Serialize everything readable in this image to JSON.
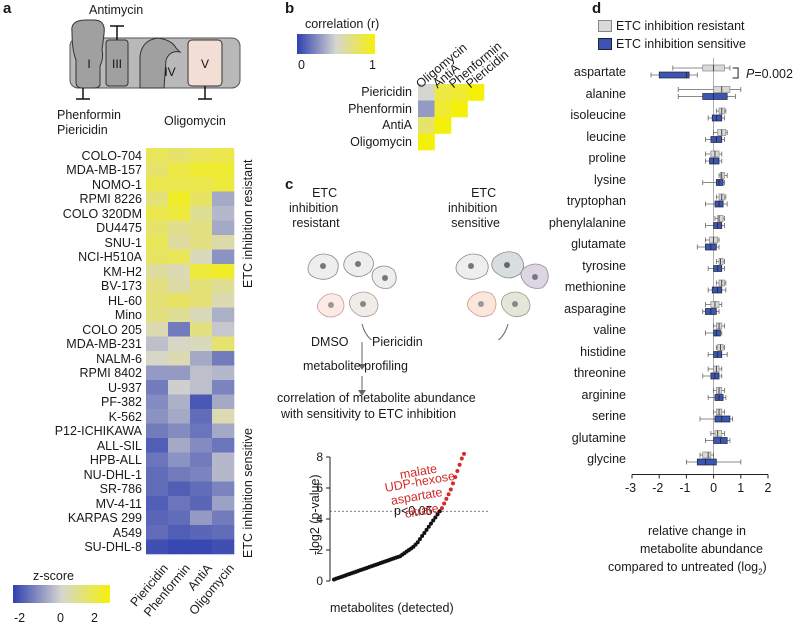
{
  "panels": {
    "a": "a",
    "b": "b",
    "c": "c",
    "d": "d"
  },
  "panel_a": {
    "complexes": [
      "I",
      "III",
      "IV",
      "V"
    ],
    "inhibitors": {
      "top": "Antimycin",
      "left_1": "Phenformin",
      "left_2": "Piericidin",
      "right": "Oligomycin"
    },
    "rows": [
      "COLO-704",
      "MDA-MB-157",
      "NOMO-1",
      "RPMI 8226",
      "COLO 320DM",
      "DU4475",
      "SNU-1",
      "NCI-H510A",
      "KM-H2",
      "BV-173",
      "HL-60",
      "Mino",
      "COLO 205",
      "MDA-MB-231",
      "NALM-6",
      "RPMI 8402",
      "U-937",
      "PF-382",
      "K-562",
      "P12-ICHIKAWA",
      "ALL-SIL",
      "HPB-ALL",
      "NU-DHL-1",
      "SR-786",
      "MV-4-11",
      "KARPAS 299",
      "A549",
      "SU-DHL-8"
    ],
    "columns": [
      "Piericidin",
      "Phenformin",
      "AntiA",
      "Oligomycin"
    ],
    "values": [
      [
        1.2,
        1.0,
        1.2,
        1.3
      ],
      [
        1.0,
        1.4,
        1.6,
        1.6
      ],
      [
        1.3,
        1.3,
        1.3,
        1.5
      ],
      [
        0.9,
        1.7,
        1.1,
        -0.6
      ],
      [
        1.3,
        1.5,
        0.6,
        -0.4
      ],
      [
        1.0,
        0.7,
        0.8,
        -0.6
      ],
      [
        1.2,
        0.5,
        0.8,
        0.4
      ],
      [
        1.1,
        1.2,
        0.2,
        -0.9
      ],
      [
        0.5,
        0.3,
        1.5,
        1.7
      ],
      [
        0.8,
        0.4,
        0.9,
        0.6
      ],
      [
        0.9,
        1.1,
        0.9,
        0.3
      ],
      [
        0.8,
        0.6,
        0.2,
        -0.5
      ],
      [
        0.3,
        -1.2,
        0.8,
        -0.2
      ],
      [
        -0.3,
        0.1,
        0.2,
        1.0
      ],
      [
        0.1,
        0.3,
        -0.6,
        -1.2
      ],
      [
        -0.8,
        -0.8,
        -0.3,
        -0.4
      ],
      [
        -1.2,
        -0.1,
        -0.3,
        -1.1
      ],
      [
        -1.0,
        -0.5,
        -1.7,
        -0.6
      ],
      [
        -0.9,
        -0.6,
        -1.4,
        0.3
      ],
      [
        -1.2,
        -1.0,
        -1.3,
        -0.6
      ],
      [
        -1.6,
        -0.6,
        -1.0,
        -1.3
      ],
      [
        -1.3,
        -0.9,
        -1.2,
        -0.4
      ],
      [
        -1.4,
        -1.2,
        -1.1,
        -0.4
      ],
      [
        -1.4,
        -1.6,
        -1.4,
        -1.1
      ],
      [
        -1.6,
        -1.3,
        -1.5,
        -0.7
      ],
      [
        -1.5,
        -1.4,
        -0.8,
        -1.2
      ],
      [
        -1.4,
        -1.6,
        -1.5,
        -1.4
      ],
      [
        -1.8,
        -1.9,
        -1.9,
        -1.8
      ]
    ],
    "group_resistant": "ETC inhibition resistant",
    "group_sensitive": "ETC inhibition sensitive",
    "colorbar": {
      "title": "z-score",
      "ticks": [
        "-2",
        "0",
        "2"
      ]
    },
    "colors": {
      "low": "#3040b0",
      "mid": "#d6d6d0",
      "high": "#f5f00a"
    }
  },
  "panel_b": {
    "colorbar": {
      "title": "correlation (r)",
      "ticks": [
        "0",
        "1"
      ]
    },
    "rows": [
      "Piericidin",
      "Phenformin",
      "AntiA",
      "Oligomycin"
    ],
    "columns": [
      "Oligomycin",
      "AntiA",
      "Phenformin",
      "Piericidin"
    ],
    "values": [
      [
        0.5,
        0.85,
        0.9,
        1.0
      ],
      [
        0.3,
        0.9,
        1.0,
        null
      ],
      [
        0.75,
        1.0,
        null,
        null
      ],
      [
        1.0,
        null,
        null,
        null
      ]
    ]
  },
  "panel_c": {
    "resistant_label": [
      "ETC",
      "inhibition",
      "resistant"
    ],
    "sensitive_label": [
      "ETC",
      "inhibition",
      "sensitive"
    ],
    "dmso": "DMSO",
    "piericidin": "Piericidin",
    "profiling": "metabolite profiling",
    "correlation_1": "correlation of metabolite abundance",
    "correlation_2": "with sensitivity to ETC inhibition",
    "threshold_label": "p<0.05",
    "highlight": [
      "malate",
      "UDP-hexose",
      "aspartate",
      "citrate"
    ]
  },
  "chart_data": {
    "type": "scatter",
    "title": "",
    "xlabel": "metabolites (detected)",
    "ylabel": "-log2 (p-value)",
    "ylim": [
      0,
      8
    ],
    "yticks": [
      "0",
      "2",
      "4",
      "6",
      "8"
    ],
    "threshold": 4.5,
    "values_sorted": [
      0.1,
      0.15,
      0.2,
      0.25,
      0.3,
      0.35,
      0.4,
      0.45,
      0.5,
      0.55,
      0.6,
      0.65,
      0.7,
      0.75,
      0.8,
      0.85,
      0.9,
      0.95,
      1.0,
      1.05,
      1.1,
      1.15,
      1.2,
      1.25,
      1.3,
      1.35,
      1.4,
      1.45,
      1.5,
      1.55,
      1.6,
      1.7,
      1.8,
      1.9,
      2.0,
      2.1,
      2.2,
      2.35,
      2.5,
      2.7,
      2.9,
      3.1,
      3.3,
      3.5,
      3.7,
      3.9,
      4.1,
      4.3,
      4.5,
      4.7,
      5.0,
      5.3,
      5.6,
      5.9,
      6.3,
      6.7,
      7.1,
      7.5,
      7.9,
      8.2
    ]
  },
  "panel_d": {
    "legend": {
      "resistant": "ETC inhibition resistant",
      "sensitive": "ETC inhibition sensitive"
    },
    "pvalue_p": "P",
    "pvalue_rest": "=0.002",
    "xlabel_1": "relative change in",
    "xlabel_2": "metabolite abundance",
    "xlabel_3": "compared to untreated (log",
    "xlabel_sub": "2",
    "xlabel_close": ")",
    "xlim": [
      -3,
      2
    ],
    "xticks": [
      "-3",
      "-2",
      "-1",
      "0",
      "1",
      "2"
    ],
    "colors": {
      "resistant": "#d9d9d9",
      "sensitive": "#3a55b3"
    },
    "metabolites": [
      {
        "name": "aspartate",
        "res": [
          -1.5,
          -0.4,
          0.0,
          0.4,
          0.6
        ],
        "sen": [
          -2.3,
          -2.0,
          -1.0,
          -0.9,
          -0.6
        ]
      },
      {
        "name": "alanine",
        "res": [
          -1.3,
          0.0,
          0.3,
          0.6,
          1.0
        ],
        "sen": [
          -1.3,
          -0.4,
          0.0,
          0.5,
          0.8
        ]
      },
      {
        "name": "isoleucine",
        "res": [
          0.1,
          0.2,
          0.3,
          0.4,
          0.45
        ],
        "sen": [
          -0.2,
          -0.05,
          0.1,
          0.3,
          0.4
        ]
      },
      {
        "name": "leucine",
        "res": [
          0.0,
          0.15,
          0.3,
          0.45,
          0.5
        ],
        "sen": [
          -0.3,
          -0.1,
          0.1,
          0.3,
          0.4
        ]
      },
      {
        "name": "proline",
        "res": [
          -0.3,
          -0.1,
          0.05,
          0.2,
          0.3
        ],
        "sen": [
          -0.3,
          -0.15,
          0.0,
          0.2,
          0.3
        ]
      },
      {
        "name": "lysine",
        "res": [
          0.2,
          0.25,
          0.3,
          0.4,
          0.5
        ],
        "sen": [
          -0.4,
          0.1,
          0.2,
          0.35,
          0.4
        ]
      },
      {
        "name": "tryptophan",
        "res": [
          0.1,
          0.2,
          0.3,
          0.4,
          0.45
        ],
        "sen": [
          -0.3,
          0.05,
          0.2,
          0.35,
          0.5
        ]
      },
      {
        "name": "phenylalanine",
        "res": [
          0.05,
          0.15,
          0.2,
          0.35,
          0.4
        ],
        "sen": [
          -0.3,
          0.0,
          0.15,
          0.3,
          0.4
        ]
      },
      {
        "name": "glutamate",
        "res": [
          -0.3,
          -0.15,
          0.0,
          0.15,
          0.2
        ],
        "sen": [
          -0.6,
          -0.3,
          -0.1,
          0.1,
          0.2
        ]
      },
      {
        "name": "tyrosine",
        "res": [
          0.1,
          0.2,
          0.25,
          0.35,
          0.4
        ],
        "sen": [
          -0.2,
          0.0,
          0.15,
          0.3,
          0.4
        ]
      },
      {
        "name": "methionine",
        "res": [
          0.1,
          0.2,
          0.3,
          0.4,
          0.45
        ],
        "sen": [
          -0.2,
          -0.05,
          0.15,
          0.3,
          0.45
        ]
      },
      {
        "name": "asparagine",
        "res": [
          -0.3,
          -0.1,
          0.05,
          0.2,
          0.3
        ],
        "sen": [
          -0.4,
          -0.3,
          -0.1,
          0.1,
          0.2
        ]
      },
      {
        "name": "valine",
        "res": [
          0.0,
          0.1,
          0.2,
          0.3,
          0.4
        ],
        "sen": [
          -0.3,
          0.0,
          0.1,
          0.25,
          0.3
        ]
      },
      {
        "name": "histidine",
        "res": [
          0.1,
          0.15,
          0.25,
          0.35,
          0.4
        ],
        "sen": [
          -0.2,
          0.0,
          0.15,
          0.3,
          0.5
        ]
      },
      {
        "name": "threonine",
        "res": [
          -0.2,
          0.0,
          0.1,
          0.2,
          0.3
        ],
        "sen": [
          -0.4,
          -0.1,
          0.05,
          0.2,
          0.3
        ]
      },
      {
        "name": "arginine",
        "res": [
          0.0,
          0.1,
          0.2,
          0.3,
          0.4
        ],
        "sen": [
          -0.2,
          0.05,
          0.2,
          0.35,
          0.45
        ]
      },
      {
        "name": "serine",
        "res": [
          0.0,
          0.1,
          0.2,
          0.3,
          0.4
        ],
        "sen": [
          -0.5,
          0.05,
          0.3,
          0.6,
          0.7
        ]
      },
      {
        "name": "glutamine",
        "res": [
          -0.1,
          0.05,
          0.15,
          0.3,
          0.4
        ],
        "sen": [
          -0.3,
          0.0,
          0.25,
          0.5,
          0.6
        ]
      },
      {
        "name": "glycine",
        "res": [
          -0.5,
          -0.4,
          -0.2,
          -0.1,
          0.0
        ],
        "sen": [
          -1.0,
          -0.6,
          -0.3,
          0.1,
          1.0
        ]
      }
    ]
  }
}
